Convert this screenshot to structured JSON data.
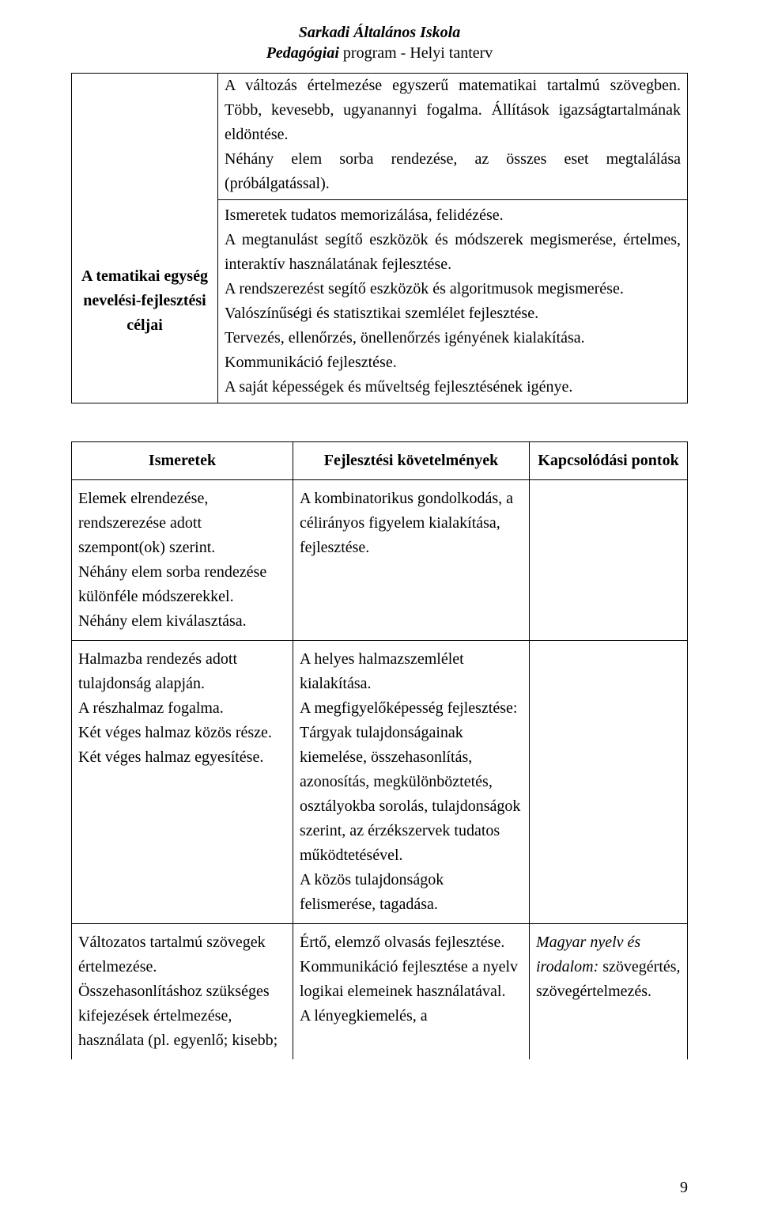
{
  "header": {
    "line1": "Sarkadi Általános Iskola",
    "line2_bold_ital": "Pedagógiai",
    "line2_rest": " program - Helyi tanterv"
  },
  "table1": {
    "left_label": "A tematikai egység nevelési-fejlesztési céljai",
    "right_top": "A változás értelmezése egyszerű matematikai tartalmú szövegben. Több, kevesebb, ugyanannyi fogalma. Állítások igazságtartalmának eldöntése.\nNéhány elem sorba rendezése, az összes eset megtalálása (próbálgatással).",
    "right_bottom": "Ismeretek tudatos memorizálása, felidézése.\nA megtanulást segítő eszközök és módszerek megismerése, értelmes, interaktív használatának fejlesztése.\nA rendszerezést segítő eszközök és algoritmusok megismerése.\nValószínűségi és statisztikai szemlélet fejlesztése.\nTervezés, ellenőrzés, önellenőrzés igényének kialakítása.\nKommunikáció fejlesztése.\nA saját képességek és műveltség fejlesztésének igénye."
  },
  "table2": {
    "headers": {
      "c1": "Ismeretek",
      "c2": "Fejlesztési követelmények",
      "c3": "Kapcsolódási pontok"
    },
    "rows": [
      {
        "c1": "Elemek elrendezése, rendszerezése adott szempont(ok) szerint.\nNéhány elem sorba rendezése különféle módszerekkel.\nNéhány elem kiválasztása.",
        "c2": "A kombinatorikus gondolkodás, a célirányos figyelem kialakítása, fejlesztése.",
        "c3": ""
      },
      {
        "c1": "Halmazba rendezés adott tulajdonság alapján.\nA részhalmaz fogalma.\nKét véges halmaz közös része.\nKét véges halmaz egyesítése.",
        "c2": "A helyes halmazszemlélet kialakítása.\nA megfigyelőképesség fejlesztése:\nTárgyak tulajdonságainak kiemelése, összehasonlítás, azonosítás, megkülönböztetés, osztályokba sorolás, tulajdonságok szerint, az érzékszervek tudatos működtetésével.\nA közös tulajdonságok felismerése, tagadása.",
        "c3": ""
      },
      {
        "c1": "Változatos tartalmú szövegek értelmezése.\nÖsszehasonlításhoz szükséges kifejezések értelmezése, használata (pl. egyenlő; kisebb;",
        "c2": "Értő, elemző olvasás fejlesztése.\nKommunikáció fejlesztése a nyelv logikai elemeinek használatával.\nA lényegkiemelés, a",
        "c3_ital": "Magyar nyelv és irodalom:",
        "c3_rest": " szövegértés, szövegértelmezés."
      }
    ]
  },
  "page_number": "9"
}
